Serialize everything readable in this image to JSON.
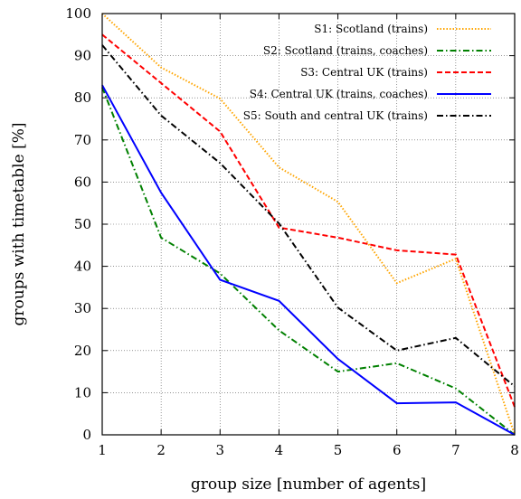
{
  "chart_data": {
    "type": "line",
    "xlabel": "group size [number of agents]",
    "ylabel": "groups with timetable [%]",
    "xlim": [
      1,
      8
    ],
    "ylim": [
      0,
      100
    ],
    "xticks": [
      1,
      2,
      3,
      4,
      5,
      6,
      7,
      8
    ],
    "yticks": [
      0,
      10,
      20,
      30,
      40,
      50,
      60,
      70,
      80,
      90,
      100
    ],
    "grid": true,
    "legend_position": "top-right",
    "x": [
      1,
      2,
      3,
      4,
      5,
      6,
      7,
      8
    ],
    "series": [
      {
        "name": "S1: Scotland (trains)",
        "values": [
          100,
          87.2,
          79.8,
          63.5,
          55.3,
          36.0,
          41.8,
          0
        ],
        "color": "#FFA500",
        "dash": "dotted"
      },
      {
        "name": "S2: Scotland (trains, coaches)",
        "values": [
          82.5,
          46.8,
          38.3,
          24.8,
          15.0,
          17.0,
          11.0,
          0
        ],
        "color": "#008000",
        "dash": "dash-dot"
      },
      {
        "name": "S3: Central UK (trains)",
        "values": [
          95.0,
          83.5,
          72.0,
          49.2,
          46.8,
          43.8,
          42.8,
          6.6
        ],
        "color": "#FF0000",
        "dash": "dashed"
      },
      {
        "name": "S4: Central UK (trains, coaches)",
        "values": [
          83.0,
          57.5,
          36.8,
          31.8,
          18.0,
          7.5,
          7.7,
          0
        ],
        "color": "#0000FF",
        "dash": "solid"
      },
      {
        "name": "S5: South and central UK (trains)",
        "values": [
          92.5,
          75.8,
          64.5,
          50.2,
          30.2,
          20.0,
          23.0,
          11.5
        ],
        "color": "#000000",
        "dash": "dash-dot"
      }
    ]
  }
}
